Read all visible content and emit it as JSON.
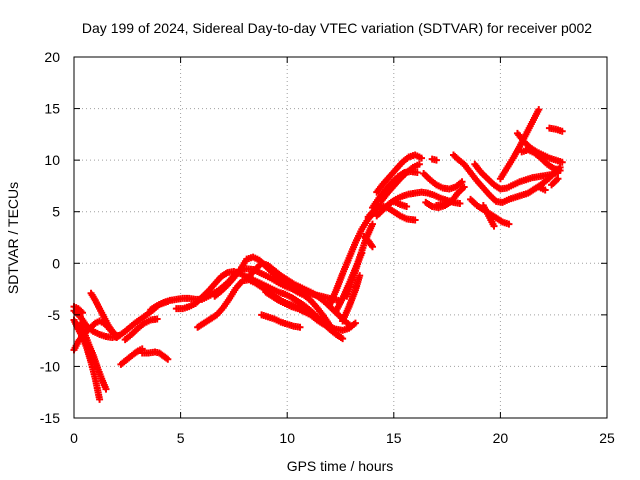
{
  "chart_data": {
    "type": "scatter",
    "title": "Day 199 of 2024, Sidereal Day-to-day VTEC variation (SDTVAR) for receiver p002",
    "xlabel": "GPS time / hours",
    "ylabel": "SDTVAR / TECUs",
    "xlim": [
      0,
      25
    ],
    "ylim": [
      -15,
      20
    ],
    "xticks": [
      "0",
      "5",
      "10",
      "15",
      "20",
      "25"
    ],
    "yticks": [
      "-15",
      "-10",
      "-5",
      "0",
      "5",
      "10",
      "15",
      "20"
    ],
    "grid": true,
    "marker": "+",
    "series_color": "#ff0000",
    "series": [
      {
        "x": [
          0.0,
          0.3,
          0.6,
          0.9,
          1.2,
          1.5,
          1.8,
          2.1
        ],
        "y": [
          -4.6,
          -5.2,
          -6.1,
          -6.6,
          -6.9,
          -7.1,
          -7.2,
          -7.0
        ]
      },
      {
        "x": [
          0.0,
          0.2,
          0.4,
          0.6,
          0.8,
          1.0,
          1.2
        ],
        "y": [
          -5.5,
          -6.4,
          -7.2,
          -8.2,
          -9.6,
          -11.2,
          -13.2
        ]
      },
      {
        "x": [
          0.3,
          0.5,
          0.7,
          0.9,
          1.1,
          1.3,
          1.5
        ],
        "y": [
          -5.8,
          -6.8,
          -7.9,
          -8.9,
          -10.1,
          -11.2,
          -12.2
        ]
      },
      {
        "x": [
          0.0,
          0.2,
          0.4,
          0.6,
          0.8,
          1.0,
          1.2,
          1.4,
          1.6,
          1.8,
          2.0
        ],
        "y": [
          -8.4,
          -7.6,
          -7.0,
          -6.6,
          -6.2,
          -5.8,
          -5.6,
          -5.8,
          -6.2,
          -6.7,
          -7.2
        ]
      },
      {
        "x": [
          0.8,
          1.0,
          1.2,
          1.4,
          1.6,
          1.8,
          2.0
        ],
        "y": [
          -2.9,
          -3.6,
          -4.4,
          -5.2,
          -6.0,
          -6.6,
          -7.0
        ]
      },
      {
        "x": [
          0.0,
          0.2,
          0.4
        ],
        "y": [
          -4.2,
          -4.4,
          -4.8
        ]
      },
      {
        "x": [
          2.0,
          2.4,
          2.8,
          3.2,
          3.6,
          4.0,
          4.4
        ],
        "y": [
          -7.2,
          -6.6,
          -5.9,
          -5.3,
          -4.7,
          -4.0,
          -3.7
        ]
      },
      {
        "x": [
          2.2,
          2.5,
          2.8,
          3.0,
          3.2
        ],
        "y": [
          -9.8,
          -9.3,
          -8.8,
          -8.5,
          -8.3
        ]
      },
      {
        "x": [
          3.2,
          3.5,
          3.8,
          4.0,
          4.2,
          4.4
        ],
        "y": [
          -8.7,
          -8.7,
          -8.6,
          -8.7,
          -9.0,
          -9.3
        ]
      },
      {
        "x": [
          2.4,
          2.7,
          3.0,
          3.3,
          3.6,
          3.9
        ],
        "y": [
          -7.4,
          -6.9,
          -6.3,
          -5.8,
          -5.5,
          -5.4
        ]
      },
      {
        "x": [
          3.6,
          3.9,
          4.2,
          4.5,
          4.8,
          5.1,
          5.4,
          5.7,
          6.0,
          6.4,
          6.8,
          7.2,
          7.6,
          8.0,
          8.4,
          8.8,
          9.2,
          9.6,
          10.0,
          10.4,
          10.8,
          11.2,
          11.6,
          12.0,
          12.4
        ],
        "y": [
          -4.5,
          -4.1,
          -3.8,
          -3.6,
          -3.5,
          -3.4,
          -3.4,
          -3.5,
          -3.5,
          -3.1,
          -2.6,
          -1.9,
          -1.0,
          -0.5,
          -0.6,
          -1.0,
          -1.4,
          -1.9,
          -2.3,
          -2.6,
          -2.8,
          -3.0,
          -3.2,
          -3.4,
          -3.6
        ]
      },
      {
        "x": [
          4.8,
          5.1,
          5.4,
          5.7,
          6.0,
          6.3,
          6.6,
          6.9,
          7.2,
          7.5,
          7.8,
          8.1,
          8.4,
          8.7,
          9.0,
          9.3,
          9.6,
          9.9,
          10.2,
          10.5,
          10.8,
          11.1,
          11.4,
          11.7,
          12.0,
          12.3,
          12.6
        ],
        "y": [
          -4.4,
          -4.4,
          -4.2,
          -3.9,
          -3.3,
          -2.7,
          -2.0,
          -1.3,
          -0.9,
          -0.8,
          -1.0,
          -1.3,
          -1.6,
          -1.9,
          -2.2,
          -2.5,
          -2.8,
          -3.0,
          -3.3,
          -3.7,
          -4.1,
          -4.6,
          -5.2,
          -5.8,
          -6.4,
          -6.9,
          -7.3
        ]
      },
      {
        "x": [
          5.8,
          6.1,
          6.4,
          6.7,
          7.0,
          7.3,
          7.6,
          7.9,
          8.2,
          8.5,
          8.8,
          9.1,
          9.4,
          9.7,
          10.0,
          10.3,
          10.6,
          10.9,
          11.2,
          11.5,
          11.8,
          12.1
        ],
        "y": [
          -6.2,
          -5.8,
          -5.4,
          -5.0,
          -4.3,
          -3.4,
          -2.4,
          -1.7,
          -1.6,
          -1.9,
          -2.3,
          -2.8,
          -3.2,
          -3.6,
          -3.9,
          -4.1,
          -4.3,
          -4.6,
          -5.0,
          -5.5,
          -6.0,
          -6.4
        ]
      },
      {
        "x": [
          6.6,
          6.9,
          7.2,
          7.5,
          7.8,
          8.1,
          8.4,
          8.7,
          9.0,
          9.3,
          9.6,
          9.9,
          10.2,
          10.5,
          10.8,
          11.1,
          11.4,
          11.7,
          12.0
        ],
        "y": [
          -3.2,
          -2.7,
          -2.1,
          -1.4,
          -0.6,
          0.4,
          0.6,
          0.3,
          -0.3,
          -0.9,
          -1.5,
          -2.0,
          -2.4,
          -2.8,
          -3.1,
          -3.6,
          -4.3,
          -5.1,
          -6.0
        ]
      },
      {
        "x": [
          8.2,
          8.5,
          8.8,
          9.1,
          9.4,
          9.7,
          10.0,
          10.3,
          10.6,
          10.9,
          11.2,
          11.5,
          11.8,
          12.1,
          12.4,
          12.7,
          13.0
        ],
        "y": [
          -1.3,
          -0.6,
          0.0,
          -0.2,
          -0.7,
          -1.2,
          -1.6,
          -2.0,
          -2.3,
          -2.6,
          -2.9,
          -3.3,
          -3.8,
          -4.4,
          -5.0,
          -5.6,
          -6.1
        ]
      },
      {
        "x": [
          9.0,
          9.3,
          9.6,
          9.9,
          10.2,
          10.5,
          10.8,
          11.1,
          11.4,
          11.7,
          12.0,
          12.3,
          12.6,
          12.9,
          13.2
        ],
        "y": [
          -2.8,
          -3.2,
          -3.6,
          -3.9,
          -4.2,
          -4.4,
          -4.7,
          -5.0,
          -5.5,
          -5.9,
          -6.2,
          -6.4,
          -6.5,
          -6.3,
          -5.8
        ]
      },
      {
        "x": [
          8.8,
          9.1,
          9.4,
          9.7,
          10.0,
          10.3,
          10.6
        ],
        "y": [
          -5.0,
          -5.2,
          -5.4,
          -5.7,
          -5.9,
          -6.1,
          -6.2
        ]
      },
      {
        "x": [
          12.0,
          12.3,
          12.6,
          12.9,
          13.2,
          13.5,
          13.8,
          14.1
        ],
        "y": [
          -4.0,
          -2.6,
          -1.0,
          0.5,
          2.0,
          3.3,
          4.3,
          5.0
        ]
      },
      {
        "x": [
          12.3,
          12.6,
          12.9,
          13.2,
          13.5
        ],
        "y": [
          -4.6,
          -3.4,
          -2.0,
          -0.5,
          1.0
        ]
      },
      {
        "x": [
          12.6,
          12.9,
          13.2,
          13.4
        ],
        "y": [
          -5.6,
          -4.2,
          -2.6,
          -1.2
        ]
      },
      {
        "x": [
          12.8,
          13.1,
          13.4,
          13.7,
          14.0
        ],
        "y": [
          -3.2,
          -1.4,
          0.6,
          2.4,
          3.8
        ]
      },
      {
        "x": [
          13.6,
          13.8,
          14.0
        ],
        "y": [
          2.6,
          2.2,
          1.6
        ]
      },
      {
        "x": [
          14.0,
          14.3,
          14.6,
          14.9,
          15.2,
          15.5,
          15.8,
          16.1
        ],
        "y": [
          5.4,
          6.3,
          7.1,
          7.8,
          8.4,
          8.8,
          8.9,
          8.8
        ]
      },
      {
        "x": [
          14.2,
          14.5,
          14.8,
          15.1,
          15.4,
          15.7,
          16.0,
          16.3
        ],
        "y": [
          6.9,
          7.7,
          8.4,
          9.1,
          9.8,
          10.3,
          10.5,
          10.2
        ]
      },
      {
        "x": [
          14.4,
          14.7,
          15.0,
          15.3,
          15.6,
          15.9,
          16.2
        ],
        "y": [
          6.0,
          6.8,
          7.5,
          8.2,
          8.8,
          9.3,
          9.6
        ]
      },
      {
        "x": [
          14.2,
          14.5,
          14.8,
          15.1,
          15.4,
          15.7,
          16.0,
          16.3,
          16.6,
          16.9,
          17.2,
          17.5,
          17.8,
          18.1
        ],
        "y": [
          4.6,
          5.2,
          5.8,
          6.2,
          6.5,
          6.7,
          6.8,
          6.9,
          6.8,
          6.6,
          6.3,
          6.1,
          5.9,
          5.8
        ]
      },
      {
        "x": [
          13.8,
          14.1,
          14.4,
          14.7,
          15.0,
          15.3,
          15.6,
          16.0
        ],
        "y": [
          4.5,
          5.2,
          5.6,
          5.4,
          5.0,
          4.6,
          4.3,
          4.2
        ]
      },
      {
        "x": [
          16.4,
          16.7,
          17.0,
          17.3,
          17.6,
          17.9,
          18.2
        ],
        "y": [
          8.7,
          8.1,
          7.6,
          7.3,
          7.2,
          7.4,
          7.9
        ]
      },
      {
        "x": [
          16.5,
          16.8,
          17.1,
          17.4,
          17.7,
          18.0,
          18.3
        ],
        "y": [
          5.9,
          5.5,
          5.4,
          5.6,
          6.0,
          6.8,
          7.4
        ]
      },
      {
        "x": [
          16.8,
          17.0
        ],
        "y": [
          10.1,
          10.0
        ]
      },
      {
        "x": [
          17.8,
          18.0,
          18.3,
          18.6,
          18.9,
          19.2,
          19.5,
          19.8,
          20.1,
          20.4,
          20.7,
          21.0,
          21.3,
          21.6,
          21.9,
          22.2,
          22.5,
          22.8
        ],
        "y": [
          10.5,
          10.1,
          9.6,
          8.8,
          8.0,
          7.3,
          6.6,
          6.0,
          5.9,
          6.2,
          6.4,
          6.6,
          6.8,
          7.2,
          7.6,
          8.1,
          8.7,
          9.3
        ]
      },
      {
        "x": [
          18.8,
          19.1,
          19.4,
          19.7,
          20.0,
          20.3,
          20.6,
          20.9,
          21.2,
          21.5,
          21.8,
          22.1,
          22.4,
          22.7
        ],
        "y": [
          9.6,
          8.8,
          8.2,
          7.6,
          7.2,
          7.3,
          7.6,
          7.9,
          8.1,
          8.3,
          8.4,
          8.5,
          8.6,
          8.8
        ]
      },
      {
        "x": [
          18.6,
          18.9,
          19.2,
          19.5,
          19.8,
          20.1,
          20.4
        ],
        "y": [
          6.2,
          5.6,
          5.2,
          4.8,
          4.4,
          4.0,
          3.8
        ]
      },
      {
        "x": [
          19.2,
          19.5,
          19.7
        ],
        "y": [
          5.6,
          4.4,
          3.6
        ]
      },
      {
        "x": [
          20.0,
          20.3,
          20.6,
          20.9,
          21.2,
          21.5,
          21.8
        ],
        "y": [
          8.2,
          9.2,
          10.2,
          11.3,
          12.5,
          13.7,
          14.9
        ]
      },
      {
        "x": [
          20.8,
          21.1,
          21.4,
          21.7,
          22.0,
          22.3,
          22.6,
          22.9
        ],
        "y": [
          12.6,
          11.8,
          11.2,
          10.8,
          10.5,
          10.2,
          10.0,
          9.8
        ]
      },
      {
        "x": [
          21.0,
          21.3,
          21.6,
          21.9,
          22.2,
          22.5,
          22.8
        ],
        "y": [
          10.8,
          11.0,
          10.7,
          10.2,
          9.6,
          9.2,
          9.0
        ]
      },
      {
        "x": [
          22.3,
          22.6,
          22.9
        ],
        "y": [
          13.1,
          13.0,
          12.8
        ]
      },
      {
        "x": [
          22.4,
          22.7
        ],
        "y": [
          7.6,
          8.2
        ]
      },
      {
        "x": [
          15.0,
          15.3,
          15.6
        ],
        "y": [
          6.0,
          5.7,
          5.5
        ]
      },
      {
        "x": [
          17.0,
          17.3,
          17.6
        ],
        "y": [
          5.6,
          5.7,
          5.9
        ]
      },
      {
        "x": [
          21.8,
          22.1
        ],
        "y": [
          7.4,
          7.1
        ]
      }
    ]
  }
}
